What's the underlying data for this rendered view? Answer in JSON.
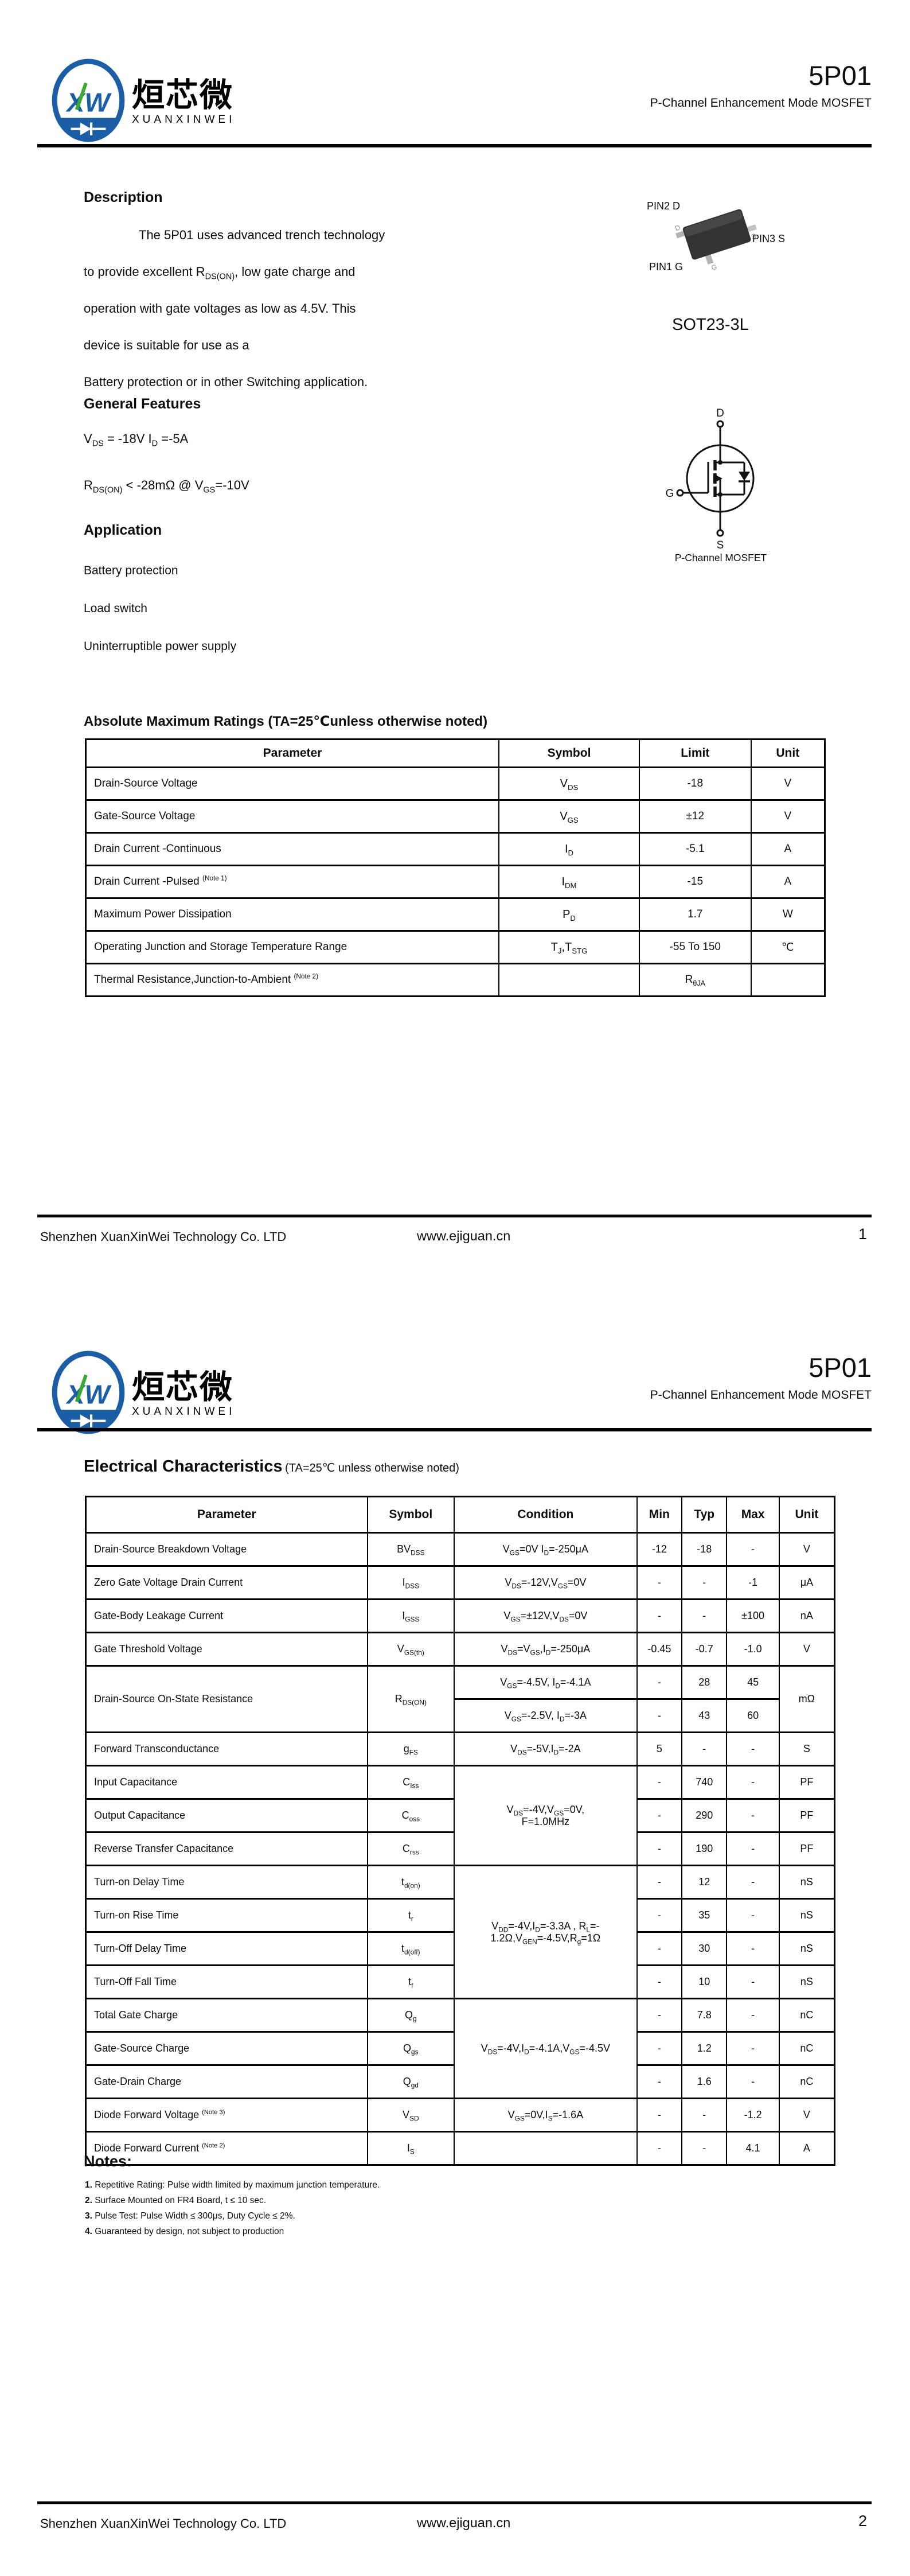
{
  "colors": {
    "brand_blue": "#1b5ea6",
    "brand_green": "#3aa832",
    "text": "#0d0d0d"
  },
  "header": {
    "logo": {
      "monogram": "XW",
      "brand_cn": "烜芯微",
      "brand_en": "XUANXINWEI"
    },
    "part_number": "5P01",
    "subtitle": "P-Channel Enhancement Mode MOSFET"
  },
  "page1": {
    "description": {
      "heading": "Description",
      "lines": [
        "The 5P01 uses advanced trench technology",
        "to provide excellent R~DS(ON)~, low gate charge and",
        "operation with gate voltages as low as 4.5V. This",
        "device is suitable for use as a",
        "Battery protection or in other Switching application."
      ]
    },
    "package_figure": {
      "pin2_label": "PIN2 D",
      "pin3_label": "PIN3 S",
      "pin1_label": "PIN1 G",
      "lead_d": "D",
      "lead_s": "S",
      "lead_g": "G",
      "caption": "SOT23-3L"
    },
    "general_features": {
      "heading": "General Features",
      "items": [
        "V~DS~ = -18V  I~D~ =-5A",
        "R~DS(ON)~ < -28mΩ @ V~GS~=-10V"
      ]
    },
    "application": {
      "heading": "Application",
      "items": [
        "Battery protection",
        "Load switch",
        "Uninterruptible power supply"
      ]
    },
    "symbol_figure": {
      "d": "D",
      "g": "G",
      "s": "S",
      "caption": "P-Channel MOSFET"
    },
    "abs_max": {
      "heading": "Absolute Maximum Ratings (TA=25℃unless otherwise noted)",
      "columns": [
        "Parameter",
        "Symbol",
        "Limit",
        "Unit"
      ],
      "rows": [
        {
          "parameter": "Drain-Source Voltage",
          "symbol": "V~DS~",
          "limit": "-18",
          "unit": "V"
        },
        {
          "parameter": "Gate-Source Voltage",
          "symbol": "V~GS~",
          "limit": "±12",
          "unit": "V"
        },
        {
          "parameter": "Drain Current -Continuous",
          "symbol": "I~D~",
          "limit": "-5.1",
          "unit": "A"
        },
        {
          "parameter": "Drain Current -Pulsed ^(Note 1)^",
          "symbol": "I~DM~",
          "limit": "-15",
          "unit": "A"
        },
        {
          "parameter": "Maximum Power Dissipation",
          "symbol": "P~D~",
          "limit": "1.7",
          "unit": "W"
        },
        {
          "parameter": "Operating Junction and Storage Temperature Range",
          "symbol": "T~J~,T~STG~",
          "limit": "-55 To 150",
          "unit": "℃"
        },
        {
          "parameter": "Thermal Resistance,Junction-to-Ambient ^(Note 2)^",
          "symbol": "",
          "limit": "R~θJA~",
          "unit": ""
        }
      ]
    },
    "footer": {
      "company": "Shenzhen XuanXinWei Technology Co. LTD",
      "website": "www.ejiguan.cn",
      "page": "1"
    }
  },
  "page2": {
    "elec": {
      "heading_main": "Electrical Characteristics",
      "heading_note": "(TA=25℃ unless otherwise noted)",
      "columns": [
        "Parameter",
        "Symbol",
        "Condition",
        "Min",
        "Typ",
        "Max",
        "Unit"
      ],
      "rows": [
        {
          "parameter": "Drain-Source Breakdown Voltage",
          "symbol": "BV~DSS~",
          "condition": "V~GS~=0V I~D~=-250μA",
          "min": "-12",
          "typ": "-18",
          "max": "-",
          "unit": "V"
        },
        {
          "parameter": "Zero Gate Voltage Drain Current",
          "symbol": "I~DSS~",
          "condition": "V~DS~=-12V,V~GS~=0V",
          "min": "-",
          "typ": "-",
          "max": "-1",
          "unit": "μA"
        },
        {
          "parameter": "Gate-Body Leakage Current",
          "symbol": "I~GSS~",
          "condition": "V~GS~=±12V,V~DS~=0V",
          "min": "-",
          "typ": "-",
          "max": "±100",
          "unit": "nA"
        },
        {
          "parameter": "Gate Threshold Voltage",
          "symbol": "V~GS(th)~",
          "condition": "V~DS~=V~GS~,I~D~=-250μA",
          "min": "-0.45",
          "typ": "-0.7",
          "max": "-1.0",
          "unit": "V"
        },
        {
          "parameter": "Drain-Source On-State Resistance",
          "symbol": "R~DS(ON)~",
          "condition": "V~GS~=-4.5V, I~D~=-4.1A",
          "min": "-",
          "typ": "28",
          "max": "45",
          "unit": "mΩ"
        },
        {
          "condition": "V~GS~=-2.5V, I~D~=-3A",
          "min": "-",
          "typ": "43",
          "max": "60"
        },
        {
          "parameter": "Forward Transconductance",
          "symbol": "g~FS~",
          "condition": "V~DS~=-5V,I~D~=-2A",
          "min": "5",
          "typ": "-",
          "max": "-",
          "unit": "S"
        },
        {
          "parameter": "Input Capacitance",
          "symbol": "C~Iss~",
          "condition": "V~DS~=-4V,V~GS~=0V,\nF=1.0MHz",
          "min": "-",
          "typ": "740",
          "max": "-",
          "unit": "PF"
        },
        {
          "parameter": "Output Capacitance",
          "symbol": "C~oss~",
          "min": "-",
          "typ": "290",
          "max": "-",
          "unit": "PF"
        },
        {
          "parameter": "Reverse Transfer Capacitance",
          "symbol": "C~rss~",
          "min": "-",
          "typ": "190",
          "max": "-",
          "unit": "PF"
        },
        {
          "parameter": "Turn-on Delay Time",
          "symbol": "t~d(on)~",
          "condition": "V~DD~=-4V,I~D~=-3.3A , R~L~=-\n1.2Ω,V~GEN~=-4.5V,R~g~=1Ω",
          "min": "-",
          "typ": "12",
          "max": "-",
          "unit": "nS"
        },
        {
          "parameter": "Turn-on Rise Time",
          "symbol": "t~r~",
          "min": "-",
          "typ": "35",
          "max": "-",
          "unit": "nS"
        },
        {
          "parameter": "Turn-Off Delay Time",
          "symbol": "t~d(off)~",
          "min": "-",
          "typ": "30",
          "max": "-",
          "unit": "nS"
        },
        {
          "parameter": "Turn-Off Fall Time",
          "symbol": "t~f~",
          "min": "-",
          "typ": "10",
          "max": "-",
          "unit": "nS"
        },
        {
          "parameter": "Total Gate Charge",
          "symbol": "Q~g~",
          "condition": "V~DS~=-4V,I~D~=-4.1A,V~GS~=-4.5V",
          "min": "-",
          "typ": "7.8",
          "max": "-",
          "unit": "nC"
        },
        {
          "parameter": "Gate-Source Charge",
          "symbol": "Q~gs~",
          "min": "-",
          "typ": "1.2",
          "max": "-",
          "unit": "nC"
        },
        {
          "parameter": "Gate-Drain Charge",
          "symbol": "Q~gd~",
          "min": "-",
          "typ": "1.6",
          "max": "-",
          "unit": "nC"
        },
        {
          "parameter": "Diode Forward Voltage ^(Note 3)^",
          "symbol": "V~SD~",
          "condition": "V~GS~=0V,I~S~=-1.6A",
          "min": "-",
          "typ": "-",
          "max": "-1.2",
          "unit": "V"
        },
        {
          "parameter": "Diode Forward Current ^(Note 2)^",
          "symbol": "I~S~",
          "condition": "",
          "min": "-",
          "typ": "-",
          "max": "4.1",
          "unit": "A"
        }
      ]
    },
    "notes": {
      "heading": "Notes:",
      "items": [
        {
          "num": "1.",
          "text": " Repetitive Rating: Pulse width limited by maximum junction temperature."
        },
        {
          "num": "2.",
          "text": " Surface Mounted on FR4 Board, t ≤ 10 sec."
        },
        {
          "num": "3.",
          "text": " Pulse Test: Pulse Width ≤ 300μs, Duty Cycle ≤ 2%."
        },
        {
          "num": "4.",
          "text": " Guaranteed by design, not subject to production"
        }
      ]
    },
    "footer": {
      "company": "Shenzhen XuanXinWei Technology Co. LTD",
      "website": "www.ejiguan.cn",
      "page": "2"
    }
  }
}
